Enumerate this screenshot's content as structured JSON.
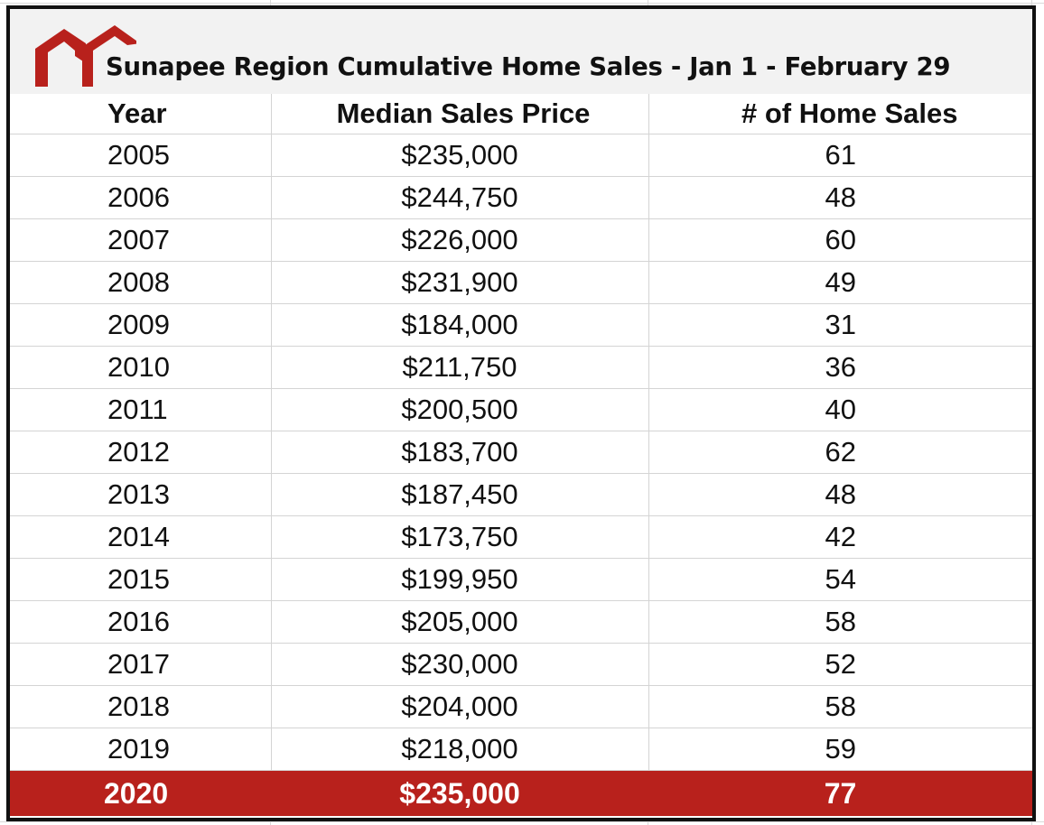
{
  "title": "Sunapee Region Cumulative Home Sales - Jan 1 - February 29",
  "logo": {
    "icon": "house-roof-logo-icon",
    "color": "#b8211c"
  },
  "columns": {
    "year": "Year",
    "price": "Median Sales Price",
    "sales": "# of Home Sales"
  },
  "rows": [
    {
      "year": "2005",
      "price": "$235,000",
      "sales": "61"
    },
    {
      "year": "2006",
      "price": "$244,750",
      "sales": "48"
    },
    {
      "year": "2007",
      "price": "$226,000",
      "sales": "60"
    },
    {
      "year": "2008",
      "price": "$231,900",
      "sales": "49"
    },
    {
      "year": "2009",
      "price": "$184,000",
      "sales": "31"
    },
    {
      "year": "2010",
      "price": "$211,750",
      "sales": "36"
    },
    {
      "year": "2011",
      "price": "$200,500",
      "sales": "40"
    },
    {
      "year": "2012",
      "price": "$183,700",
      "sales": "62"
    },
    {
      "year": "2013",
      "price": "$187,450",
      "sales": "48"
    },
    {
      "year": "2014",
      "price": "$173,750",
      "sales": "42"
    },
    {
      "year": "2015",
      "price": "$199,950",
      "sales": "54"
    },
    {
      "year": "2016",
      "price": "$205,000",
      "sales": "58"
    },
    {
      "year": "2017",
      "price": "$230,000",
      "sales": "52"
    },
    {
      "year": "2018",
      "price": "$204,000",
      "sales": "58"
    },
    {
      "year": "2019",
      "price": "$218,000",
      "sales": "59"
    }
  ],
  "highlight_row": {
    "year": "2020",
    "price": "$235,000",
    "sales": "77"
  },
  "colors": {
    "highlight_bg": "#b8211c",
    "highlight_text": "#ffffff",
    "border": "#111111",
    "title_band": "#f2f2f2"
  }
}
